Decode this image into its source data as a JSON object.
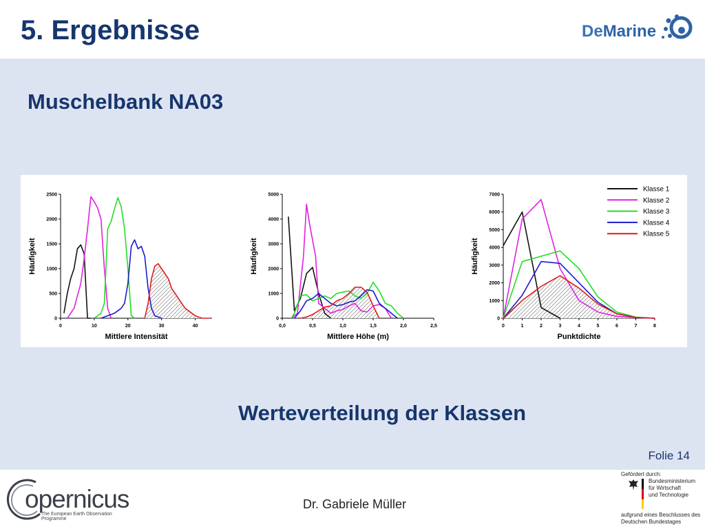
{
  "slide": {
    "title": "5. Ergebnisse",
    "subtitle": "Muschelbank NA03",
    "caption": "Werteverteilung der Klassen",
    "slide_number": "Folie 14",
    "author": "Dr. Gabriele Müller"
  },
  "logos": {
    "demarine_de": "De",
    "demarine_rest": "Marine",
    "copernicus_name": "opernicus",
    "copernicus_tagline": "The European Earth Observation Programme",
    "funding_label": "Gefördert durch:",
    "ministry_line1": "Bundesministerium",
    "ministry_line2": "für Wirtschaft",
    "ministry_line3": "und Technologie",
    "basis_line1": "aufgrund eines Beschlusses des",
    "basis_line2": "Deutschen Bundestages"
  },
  "colors": {
    "Klasse 1": "#111111",
    "Klasse 2": "#e020e0",
    "Klasse 3": "#22dd22",
    "Klasse 4": "#1a1acc",
    "Klasse 5": "#dd1a1a"
  },
  "chart_data": [
    {
      "type": "line",
      "xlabel": "Mittlere Intensität",
      "ylabel": "Häufigkeit",
      "xlim": [
        0,
        45
      ],
      "ylim": [
        0,
        2500
      ],
      "xticks": [
        0,
        10,
        20,
        30,
        40
      ],
      "xtick_labels": [
        "0",
        "10",
        "20",
        "30",
        "40"
      ],
      "yticks": [
        0,
        500,
        1000,
        1500,
        2000,
        2500
      ],
      "ytick_labels": [
        "0",
        "500",
        "1000",
        "1500",
        "2000",
        "2500"
      ],
      "hatched_series": "Klasse 5",
      "series": [
        {
          "name": "Klasse 1",
          "x": [
            1,
            2,
            3,
            4,
            5,
            6,
            7,
            8,
            9
          ],
          "y": [
            100,
            500,
            800,
            1000,
            1400,
            1480,
            1300,
            0,
            0
          ]
        },
        {
          "name": "Klasse 2",
          "x": [
            2,
            4,
            6,
            7,
            8,
            9,
            10,
            11,
            12,
            13,
            14,
            15
          ],
          "y": [
            0,
            200,
            700,
            1200,
            1800,
            2450,
            2350,
            2220,
            2000,
            1000,
            200,
            0
          ]
        },
        {
          "name": "Klasse 3",
          "x": [
            10,
            11,
            12,
            13,
            14,
            15,
            16,
            17,
            18,
            19,
            20,
            21,
            22
          ],
          "y": [
            0,
            50,
            100,
            300,
            1800,
            1950,
            2200,
            2430,
            2250,
            1800,
            1000,
            50,
            0
          ]
        },
        {
          "name": "Klasse 4",
          "x": [
            12,
            14,
            16,
            17,
            18,
            19,
            20,
            21,
            22,
            23,
            24,
            25,
            26,
            27,
            28,
            30
          ],
          "y": [
            0,
            50,
            100,
            150,
            200,
            300,
            700,
            1450,
            1580,
            1400,
            1450,
            1250,
            600,
            200,
            50,
            0
          ]
        },
        {
          "name": "Klasse 5",
          "x": [
            25,
            26,
            27,
            28,
            29,
            30,
            31,
            32,
            33,
            34,
            35,
            36,
            37,
            38,
            40,
            42,
            44
          ],
          "y": [
            0,
            300,
            800,
            1050,
            1100,
            1000,
            900,
            800,
            600,
            500,
            400,
            300,
            200,
            150,
            50,
            0,
            0
          ]
        }
      ]
    },
    {
      "type": "line",
      "xlabel": "Mittlere Höhe (m)",
      "ylabel": "Häufigkeit",
      "xlim": [
        0,
        2.5
      ],
      "ylim": [
        0,
        5000
      ],
      "xticks": [
        0,
        0.5,
        1.0,
        1.5,
        2.0,
        2.5
      ],
      "xtick_labels": [
        "0,0",
        "0,5",
        "1,0",
        "1,5",
        "2,0",
        "2,5"
      ],
      "yticks": [
        0,
        1000,
        2000,
        3000,
        4000,
        5000
      ],
      "ytick_labels": [
        "0",
        "1000",
        "2000",
        "3000",
        "4000",
        "5000"
      ],
      "hatched_series": "Klasse 5",
      "series": [
        {
          "name": "Klasse 1",
          "x": [
            0.1,
            0.2,
            0.3,
            0.4,
            0.5,
            0.6,
            0.7,
            0.8
          ],
          "y": [
            4100,
            300,
            800,
            1800,
            2050,
            1000,
            200,
            0
          ]
        },
        {
          "name": "Klasse 2",
          "x": [
            0.15,
            0.25,
            0.35,
            0.4,
            0.45,
            0.55,
            0.6,
            0.7,
            0.8,
            0.9,
            1.0,
            1.1,
            1.2,
            1.3,
            1.4,
            1.5,
            1.6,
            1.7,
            1.8
          ],
          "y": [
            0,
            200,
            2500,
            4600,
            3800,
            2500,
            600,
            400,
            200,
            300,
            350,
            500,
            600,
            300,
            250,
            500,
            550,
            400,
            0
          ]
        },
        {
          "name": "Klasse 3",
          "x": [
            0.15,
            0.2,
            0.3,
            0.4,
            0.5,
            0.6,
            0.7,
            0.8,
            0.9,
            1.0,
            1.1,
            1.2,
            1.3,
            1.4,
            1.5,
            1.6,
            1.7,
            1.8,
            1.9,
            2.0
          ],
          "y": [
            0,
            200,
            900,
            950,
            700,
            800,
            900,
            800,
            1000,
            1050,
            1100,
            900,
            800,
            1000,
            1450,
            1100,
            600,
            500,
            200,
            0
          ]
        },
        {
          "name": "Klasse 4",
          "x": [
            0.2,
            0.3,
            0.4,
            0.5,
            0.6,
            0.7,
            0.8,
            0.9,
            1.0,
            1.1,
            1.2,
            1.3,
            1.4,
            1.5,
            1.6,
            1.7,
            1.8,
            1.9
          ],
          "y": [
            0,
            300,
            700,
            800,
            1000,
            800,
            600,
            500,
            550,
            650,
            700,
            900,
            1150,
            1100,
            600,
            400,
            200,
            0
          ]
        },
        {
          "name": "Klasse 5",
          "x": [
            0.3,
            0.4,
            0.5,
            0.6,
            0.7,
            0.8,
            0.9,
            1.0,
            1.1,
            1.2,
            1.3,
            1.4,
            1.5,
            1.6
          ],
          "y": [
            0,
            50,
            150,
            300,
            450,
            500,
            700,
            800,
            1000,
            1250,
            1250,
            1050,
            500,
            0
          ]
        }
      ]
    },
    {
      "type": "line",
      "xlabel": "Punktdichte",
      "ylabel": "Häufigkeit",
      "xlim": [
        0,
        8
      ],
      "ylim": [
        0,
        7000
      ],
      "xticks": [
        0,
        1,
        2,
        3,
        4,
        5,
        6,
        7,
        8
      ],
      "xtick_labels": [
        "0",
        "1",
        "2",
        "3",
        "4",
        "5",
        "6",
        "7",
        "8"
      ],
      "yticks": [
        0,
        1000,
        2000,
        3000,
        4000,
        5000,
        6000,
        7000
      ],
      "ytick_labels": [
        "0",
        "1000",
        "2000",
        "3000",
        "4000",
        "5000",
        "6000",
        "7000"
      ],
      "hatched_series": "Klasse 5",
      "legend": {
        "position": "top-right",
        "entries": [
          "Klasse 1",
          "Klasse 2",
          "Klasse 3",
          "Klasse 4",
          "Klasse 5"
        ]
      },
      "series": [
        {
          "name": "Klasse 1",
          "x": [
            0,
            1,
            2,
            3
          ],
          "y": [
            4100,
            6000,
            600,
            0
          ]
        },
        {
          "name": "Klasse 2",
          "x": [
            0,
            1,
            2,
            3,
            4,
            5,
            6,
            7,
            8
          ],
          "y": [
            0,
            5600,
            6700,
            2800,
            1000,
            350,
            100,
            30,
            0
          ]
        },
        {
          "name": "Klasse 3",
          "x": [
            0,
            1,
            2,
            3,
            4,
            5,
            6,
            7,
            8
          ],
          "y": [
            0,
            3200,
            3500,
            3800,
            2800,
            1200,
            350,
            60,
            0
          ]
        },
        {
          "name": "Klasse 4",
          "x": [
            0,
            1,
            2,
            3,
            4,
            5,
            6,
            7,
            8
          ],
          "y": [
            0,
            1300,
            3200,
            3100,
            2000,
            900,
            250,
            40,
            0
          ]
        },
        {
          "name": "Klasse 5",
          "x": [
            0,
            1,
            2,
            3,
            4,
            5,
            6,
            7,
            8
          ],
          "y": [
            0,
            1000,
            1800,
            2400,
            1700,
            800,
            250,
            40,
            0
          ]
        }
      ]
    }
  ]
}
